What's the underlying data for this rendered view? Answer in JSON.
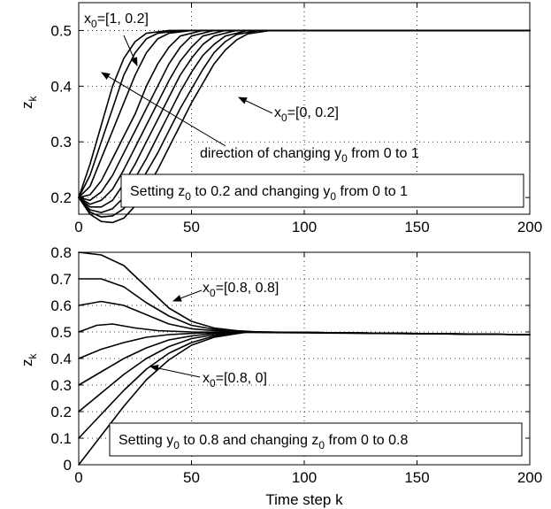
{
  "chart_data": [
    {
      "type": "line",
      "title": "",
      "xlabel": "",
      "ylabel_main": "z",
      "ylabel_sub": "k",
      "xlim": [
        0,
        200
      ],
      "ylim": [
        0.17,
        0.55
      ],
      "xticks": [
        0,
        50,
        100,
        150,
        200
      ],
      "yticks": [
        0.2,
        0.3,
        0.4,
        0.5
      ],
      "ytick_labels": [
        "0.2",
        "0.3",
        "0.4",
        "0.5"
      ],
      "grid": true,
      "line_color": "#000000",
      "series": [
        {
          "values": [
            [
              0,
              0.2
            ],
            [
              5,
              0.26
            ],
            [
              10,
              0.33
            ],
            [
              15,
              0.4
            ],
            [
              20,
              0.45
            ],
            [
              25,
              0.48
            ],
            [
              30,
              0.495
            ],
            [
              40,
              0.5
            ],
            [
              200,
              0.5
            ]
          ]
        },
        {
          "values": [
            [
              0,
              0.2
            ],
            [
              5,
              0.24
            ],
            [
              10,
              0.3
            ],
            [
              15,
              0.36
            ],
            [
              20,
              0.42
            ],
            [
              25,
              0.46
            ],
            [
              30,
              0.485
            ],
            [
              35,
              0.495
            ],
            [
              45,
              0.5
            ],
            [
              200,
              0.5
            ]
          ]
        },
        {
          "values": [
            [
              0,
              0.2
            ],
            [
              5,
              0.22
            ],
            [
              10,
              0.27
            ],
            [
              15,
              0.32
            ],
            [
              20,
              0.37
            ],
            [
              25,
              0.42
            ],
            [
              30,
              0.46
            ],
            [
              35,
              0.485
            ],
            [
              40,
              0.495
            ],
            [
              50,
              0.5
            ],
            [
              200,
              0.5
            ]
          ]
        },
        {
          "values": [
            [
              0,
              0.2
            ],
            [
              5,
              0.205
            ],
            [
              10,
              0.23
            ],
            [
              15,
              0.27
            ],
            [
              20,
              0.31
            ],
            [
              25,
              0.35
            ],
            [
              30,
              0.4
            ],
            [
              35,
              0.44
            ],
            [
              40,
              0.47
            ],
            [
              45,
              0.49
            ],
            [
              55,
              0.5
            ],
            [
              200,
              0.5
            ]
          ]
        },
        {
          "values": [
            [
              0,
              0.2
            ],
            [
              5,
              0.195
            ],
            [
              10,
              0.21
            ],
            [
              15,
              0.24
            ],
            [
              20,
              0.28
            ],
            [
              25,
              0.32
            ],
            [
              30,
              0.36
            ],
            [
              35,
              0.4
            ],
            [
              40,
              0.44
            ],
            [
              45,
              0.47
            ],
            [
              50,
              0.49
            ],
            [
              60,
              0.5
            ],
            [
              200,
              0.5
            ]
          ]
        },
        {
          "values": [
            [
              0,
              0.2
            ],
            [
              5,
              0.188
            ],
            [
              10,
              0.195
            ],
            [
              15,
              0.215
            ],
            [
              20,
              0.25
            ],
            [
              25,
              0.29
            ],
            [
              30,
              0.33
            ],
            [
              35,
              0.37
            ],
            [
              40,
              0.41
            ],
            [
              45,
              0.445
            ],
            [
              50,
              0.47
            ],
            [
              55,
              0.49
            ],
            [
              65,
              0.5
            ],
            [
              200,
              0.5
            ]
          ]
        },
        {
          "values": [
            [
              0,
              0.2
            ],
            [
              5,
              0.183
            ],
            [
              10,
              0.183
            ],
            [
              15,
              0.195
            ],
            [
              20,
              0.225
            ],
            [
              25,
              0.26
            ],
            [
              30,
              0.3
            ],
            [
              35,
              0.34
            ],
            [
              40,
              0.38
            ],
            [
              45,
              0.42
            ],
            [
              50,
              0.45
            ],
            [
              55,
              0.475
            ],
            [
              60,
              0.49
            ],
            [
              70,
              0.5
            ],
            [
              200,
              0.5
            ]
          ]
        },
        {
          "values": [
            [
              0,
              0.2
            ],
            [
              5,
              0.178
            ],
            [
              10,
              0.173
            ],
            [
              15,
              0.18
            ],
            [
              20,
              0.2
            ],
            [
              25,
              0.235
            ],
            [
              30,
              0.27
            ],
            [
              35,
              0.31
            ],
            [
              40,
              0.35
            ],
            [
              45,
              0.39
            ],
            [
              50,
              0.425
            ],
            [
              55,
              0.455
            ],
            [
              60,
              0.475
            ],
            [
              65,
              0.49
            ],
            [
              75,
              0.5
            ],
            [
              200,
              0.5
            ]
          ]
        },
        {
          "values": [
            [
              0,
              0.2
            ],
            [
              5,
              0.174
            ],
            [
              10,
              0.165
            ],
            [
              15,
              0.167
            ],
            [
              20,
              0.18
            ],
            [
              25,
              0.21
            ],
            [
              30,
              0.245
            ],
            [
              35,
              0.28
            ],
            [
              40,
              0.32
            ],
            [
              45,
              0.36
            ],
            [
              50,
              0.395
            ],
            [
              55,
              0.43
            ],
            [
              60,
              0.46
            ],
            [
              65,
              0.48
            ],
            [
              70,
              0.493
            ],
            [
              80,
              0.5
            ],
            [
              200,
              0.5
            ]
          ]
        },
        {
          "values": [
            [
              0,
              0.2
            ],
            [
              5,
              0.17
            ],
            [
              10,
              0.157
            ],
            [
              15,
              0.155
            ],
            [
              20,
              0.163
            ],
            [
              25,
              0.185
            ],
            [
              30,
              0.215
            ],
            [
              35,
              0.25
            ],
            [
              40,
              0.29
            ],
            [
              45,
              0.33
            ],
            [
              50,
              0.37
            ],
            [
              55,
              0.405
            ],
            [
              60,
              0.44
            ],
            [
              65,
              0.465
            ],
            [
              70,
              0.483
            ],
            [
              75,
              0.494
            ],
            [
              85,
              0.5
            ],
            [
              200,
              0.5
            ]
          ]
        }
      ],
      "annotations": {
        "x0_top": {
          "main": "x",
          "sub": "0",
          "rest": "=[1, 0.2]"
        },
        "x0_right": {
          "main": "x",
          "sub": "0",
          "rest": "=[0, 0.2]"
        },
        "direction": {
          "pre": "direction of changing y",
          "sub": "0",
          "post": " from 0 to 1"
        },
        "legend_box": {
          "pre": "Setting z",
          "sub1": "0",
          "mid": " to 0.2 and changing y",
          "sub2": "0",
          "post": " from 0 to 1"
        }
      }
    },
    {
      "type": "line",
      "title": "",
      "xlabel": "Time step k",
      "ylabel_main": "z",
      "ylabel_sub": "k",
      "xlim": [
        0,
        200
      ],
      "ylim": [
        0,
        0.8
      ],
      "xticks": [
        0,
        50,
        100,
        150,
        200
      ],
      "yticks": [
        0,
        0.1,
        0.2,
        0.3,
        0.4,
        0.5,
        0.6,
        0.7,
        0.8
      ],
      "ytick_labels": [
        "0",
        "0.1",
        "0.2",
        "0.3",
        "0.4",
        "0.5",
        "0.6",
        "0.7",
        "0.8"
      ],
      "grid": true,
      "line_color": "#000000",
      "series": [
        {
          "values": [
            [
              0,
              0.8
            ],
            [
              10,
              0.79
            ],
            [
              20,
              0.75
            ],
            [
              30,
              0.67
            ],
            [
              40,
              0.59
            ],
            [
              50,
              0.54
            ],
            [
              60,
              0.515
            ],
            [
              70,
              0.505
            ],
            [
              80,
              0.5
            ],
            [
              200,
              0.49
            ]
          ]
        },
        {
          "values": [
            [
              0,
              0.7
            ],
            [
              10,
              0.7
            ],
            [
              20,
              0.67
            ],
            [
              30,
              0.61
            ],
            [
              40,
              0.56
            ],
            [
              50,
              0.525
            ],
            [
              60,
              0.51
            ],
            [
              70,
              0.503
            ],
            [
              80,
              0.5
            ],
            [
              200,
              0.49
            ]
          ]
        },
        {
          "values": [
            [
              0,
              0.6
            ],
            [
              10,
              0.615
            ],
            [
              20,
              0.6
            ],
            [
              30,
              0.565
            ],
            [
              40,
              0.53
            ],
            [
              50,
              0.512
            ],
            [
              60,
              0.505
            ],
            [
              75,
              0.5
            ],
            [
              200,
              0.49
            ]
          ]
        },
        {
          "values": [
            [
              0,
              0.5
            ],
            [
              8,
              0.525
            ],
            [
              15,
              0.53
            ],
            [
              25,
              0.515
            ],
            [
              35,
              0.505
            ],
            [
              50,
              0.5
            ],
            [
              200,
              0.49
            ]
          ]
        },
        {
          "values": [
            [
              0,
              0.4
            ],
            [
              10,
              0.435
            ],
            [
              20,
              0.46
            ],
            [
              30,
              0.48
            ],
            [
              40,
              0.49
            ],
            [
              55,
              0.497
            ],
            [
              70,
              0.5
            ],
            [
              200,
              0.49
            ]
          ]
        },
        {
          "values": [
            [
              0,
              0.3
            ],
            [
              10,
              0.35
            ],
            [
              20,
              0.4
            ],
            [
              30,
              0.44
            ],
            [
              40,
              0.47
            ],
            [
              50,
              0.485
            ],
            [
              60,
              0.495
            ],
            [
              75,
              0.5
            ],
            [
              200,
              0.49
            ]
          ]
        },
        {
          "values": [
            [
              0,
              0.2
            ],
            [
              10,
              0.27
            ],
            [
              20,
              0.34
            ],
            [
              30,
              0.4
            ],
            [
              40,
              0.445
            ],
            [
              50,
              0.475
            ],
            [
              60,
              0.49
            ],
            [
              75,
              0.5
            ],
            [
              200,
              0.49
            ]
          ]
        },
        {
          "values": [
            [
              0,
              0.1
            ],
            [
              10,
              0.19
            ],
            [
              20,
              0.28
            ],
            [
              30,
              0.36
            ],
            [
              40,
              0.42
            ],
            [
              50,
              0.46
            ],
            [
              60,
              0.485
            ],
            [
              75,
              0.5
            ],
            [
              200,
              0.49
            ]
          ]
        },
        {
          "values": [
            [
              0,
              0.0
            ],
            [
              10,
              0.11
            ],
            [
              20,
              0.22
            ],
            [
              30,
              0.32
            ],
            [
              40,
              0.395
            ],
            [
              50,
              0.45
            ],
            [
              60,
              0.48
            ],
            [
              75,
              0.5
            ],
            [
              200,
              0.49
            ]
          ]
        }
      ],
      "annotations": {
        "x0_upper": {
          "main": "x",
          "sub": "0",
          "rest": "=[0.8, 0.8]"
        },
        "x0_lower": {
          "main": "x",
          "sub": "0",
          "rest": "=[0.8, 0]"
        },
        "legend_box": {
          "pre": "Setting y",
          "sub1": "0",
          "mid": " to 0.8 and changing z",
          "sub2": "0",
          "post": " from 0 to 0.8"
        }
      }
    }
  ]
}
